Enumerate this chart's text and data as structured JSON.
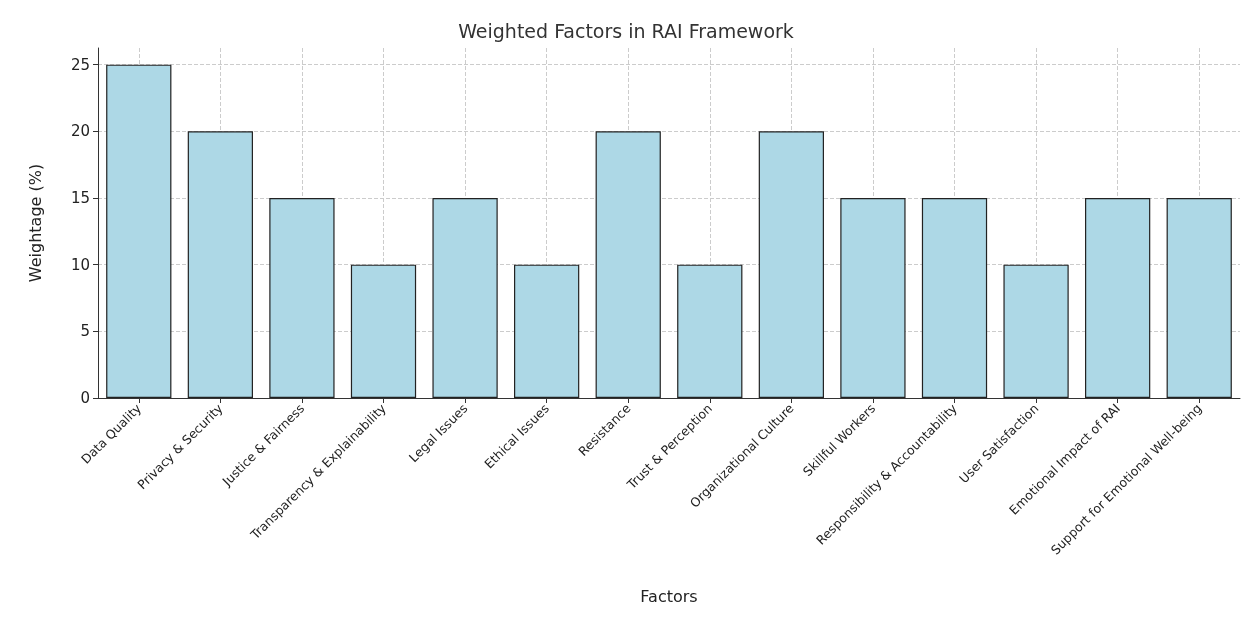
{
  "chart_data": {
    "type": "bar",
    "title": "Weighted Factors in RAI Framework",
    "xlabel": "Factors",
    "ylabel": "Weightage (%)",
    "categories": [
      "Data Quality",
      "Privacy & Security",
      "Justice & Fairness",
      "Transparency & Explainability",
      "Legal Issues",
      "Ethical Issues",
      "Resistance",
      "Trust & Perception",
      "Organizational Culture",
      "Skillful Workers",
      "Responsibility & Accountability",
      "User Satisfaction",
      "Emotional Impact of RAI",
      "Support for Emotional Well-being"
    ],
    "values": [
      25,
      20,
      15,
      10,
      15,
      10,
      20,
      10,
      20,
      15,
      15,
      10,
      15,
      15
    ],
    "color": "#add8e6",
    "ylim": [
      0,
      26.25
    ],
    "yticks": [
      0,
      5,
      10,
      15,
      20,
      25
    ],
    "grid": true
  }
}
